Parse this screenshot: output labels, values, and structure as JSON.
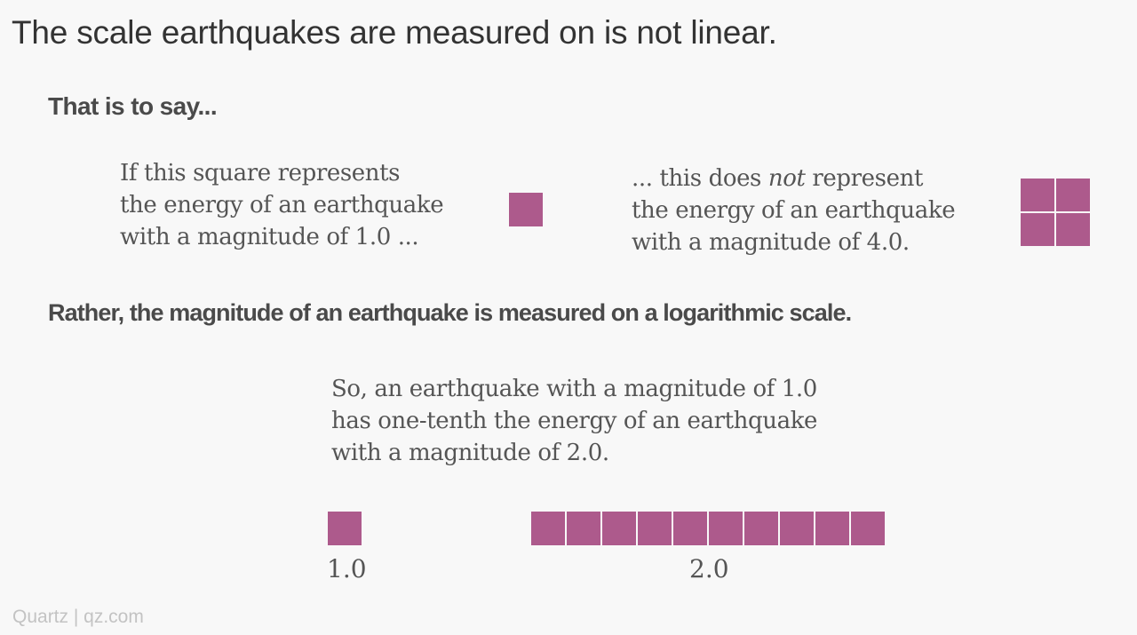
{
  "title": "The scale earthquakes are measured on is not linear.",
  "subhead_1": "That is to say...",
  "left_text": {
    "line1": "If this square represents",
    "line2": "the energy of an earthquake",
    "line3": "with a magnitude of 1.0 ..."
  },
  "right_text": {
    "line1_before": "... this does ",
    "line1_em": "not",
    "line1_after": " represent",
    "line2": "the energy of an earthquake",
    "line3": "with a magnitude of 4.0."
  },
  "subhead_2": "Rather, the magnitude of an earthquake is measured on a logarithmic scale.",
  "center_text": {
    "line1": "So, an earthquake with a magnitude of 1.0",
    "line2": "has one-tenth the energy of an earthquake",
    "line3": "with a magnitude of 2.0."
  },
  "comparison": {
    "magnitude_1_label": "1.0",
    "magnitude_1_squares": 1,
    "magnitude_2_label": "2.0",
    "magnitude_2_squares": 10,
    "wrong_example_squares": 4,
    "square_color": "#ad5a8c"
  },
  "footer": "Quartz | qz.com"
}
